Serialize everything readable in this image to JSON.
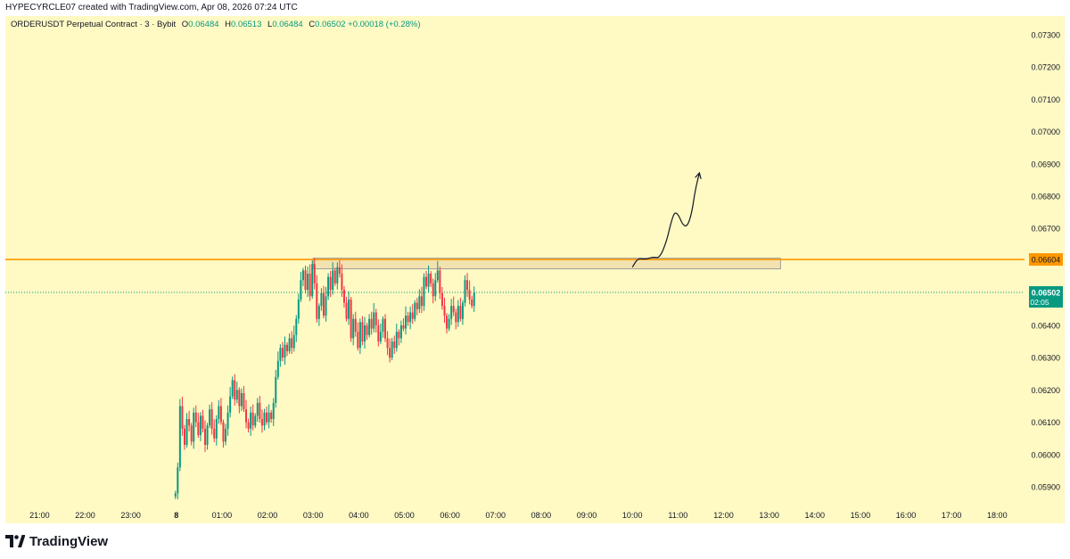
{
  "header": {
    "created_by": "HYPECYRCLE07 created with TradingView.com, Apr 08, 2026 07:24 UTC"
  },
  "legend": {
    "symbol": "ORDERUSDT Perpetual Contract · 3 · Bybit",
    "o_label": "O",
    "o_value": "0.06484",
    "h_label": "H",
    "h_value": "0.06513",
    "l_label": "L",
    "l_value": "0.06484",
    "c_label": "C",
    "c_value": "0.06502",
    "change": "+0.00018 (+0.28%)"
  },
  "footer": {
    "brand": "TradingView"
  },
  "colors": {
    "background": "#fff9c4",
    "up": "#089981",
    "down": "#f23645",
    "level_line": "#ff9800",
    "zone_fill": "#f2e2b0",
    "zone_border": "#9e9e9e",
    "last_price_tag": "#089981",
    "level_tag": "#ff9800"
  },
  "chart_data": {
    "type": "candlestick",
    "title": "ORDERUSDT Perpetual Contract · 3 · Bybit",
    "timeframe_minutes": 3,
    "ylim": [
      0.05845,
      0.0733
    ],
    "y_ticks": [
      "0.05900",
      "0.06000",
      "0.06100",
      "0.06200",
      "0.06300",
      "0.06400",
      "0.06500",
      "0.06600",
      "0.06700",
      "0.06800",
      "0.06900",
      "0.07000",
      "0.07100",
      "0.07200",
      "0.07300"
    ],
    "x_ticks": [
      "21:00",
      "22:00",
      "23:00",
      "8",
      "01:00",
      "02:00",
      "03:00",
      "04:00",
      "05:00",
      "06:00",
      "07:00",
      "08:00",
      "09:00",
      "10:00",
      "11:00",
      "12:00",
      "13:00",
      "14:00",
      "15:00",
      "16:00",
      "17:00",
      "18:00"
    ],
    "x_tick_positions_hours": [
      -3,
      -2,
      -1,
      0,
      1,
      2,
      3,
      4,
      5,
      6,
      7,
      8,
      9,
      10,
      11,
      12,
      13,
      14,
      15,
      16,
      17,
      18
    ],
    "xlim_hours": [
      -3.75,
      18.6
    ],
    "candle_start_hours": -0.02,
    "candle_step_minutes": 3,
    "closes": [
      0.0588,
      0.0596,
      0.0615,
      0.0608,
      0.0603,
      0.0611,
      0.0609,
      0.0604,
      0.0613,
      0.061,
      0.0606,
      0.0612,
      0.0608,
      0.0603,
      0.0609,
      0.0614,
      0.0608,
      0.0605,
      0.0611,
      0.0615,
      0.061,
      0.0604,
      0.0608,
      0.0613,
      0.0618,
      0.0623,
      0.0617,
      0.062,
      0.0615,
      0.0619,
      0.0614,
      0.061,
      0.0608,
      0.0613,
      0.0609,
      0.0612,
      0.0616,
      0.0611,
      0.0609,
      0.0613,
      0.061,
      0.0613,
      0.0611,
      0.0616,
      0.0624,
      0.0629,
      0.0633,
      0.063,
      0.0634,
      0.0632,
      0.0636,
      0.0633,
      0.0637,
      0.0642,
      0.0648,
      0.0654,
      0.0657,
      0.0651,
      0.0656,
      0.0649,
      0.0659,
      0.0653,
      0.0642,
      0.0646,
      0.065,
      0.0643,
      0.0649,
      0.0655,
      0.0651,
      0.0657,
      0.0653,
      0.0658,
      0.0656,
      0.0651,
      0.0647,
      0.0642,
      0.0648,
      0.0636,
      0.0642,
      0.0638,
      0.0633,
      0.0641,
      0.0635,
      0.064,
      0.0637,
      0.0642,
      0.0639,
      0.0644,
      0.064,
      0.0635,
      0.0638,
      0.0642,
      0.0636,
      0.0633,
      0.063,
      0.0635,
      0.0633,
      0.0638,
      0.0636,
      0.064,
      0.0639,
      0.0643,
      0.0641,
      0.0644,
      0.0642,
      0.0647,
      0.0645,
      0.0649,
      0.0646,
      0.0655,
      0.0652,
      0.0656,
      0.0653,
      0.0649,
      0.0654,
      0.0657,
      0.065,
      0.0646,
      0.0643,
      0.0639,
      0.0642,
      0.0646,
      0.0644,
      0.0641,
      0.0646,
      0.0642,
      0.0647,
      0.0654,
      0.0651,
      0.0648,
      0.0646,
      0.06502
    ],
    "last_price": 0.06502,
    "last_price_label": "0.06502",
    "countdown": "02:05",
    "current_price_line": 0.06502,
    "horizontal_level": 0.06604,
    "horizontal_level_label": "0.06604",
    "zone": {
      "from_hours": 3.0,
      "to_hours": 13.25,
      "low": 0.06575,
      "high": 0.06608
    },
    "projection_path": [
      [
        10.0,
        0.0658
      ],
      [
        10.12,
        0.06608
      ],
      [
        10.3,
        0.06604
      ],
      [
        10.45,
        0.06612
      ],
      [
        10.6,
        0.06608
      ],
      [
        10.75,
        0.0666
      ],
      [
        10.85,
        0.0672
      ],
      [
        10.93,
        0.06752
      ],
      [
        11.02,
        0.0674
      ],
      [
        11.1,
        0.06712
      ],
      [
        11.2,
        0.06705
      ],
      [
        11.3,
        0.06745
      ],
      [
        11.38,
        0.0682
      ],
      [
        11.47,
        0.06872
      ]
    ]
  }
}
